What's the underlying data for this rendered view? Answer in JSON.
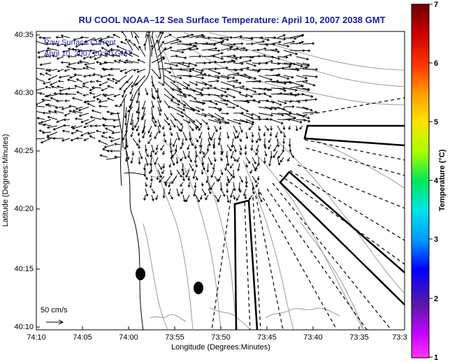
{
  "title": "RU COOL  NOAA–12  Sea Surface Temperature:  April 10, 2007 2038 GMT",
  "legend": {
    "line1": "Raw Surface Current",
    "line2": "April 10, 2007 20:00 GMT"
  },
  "scale": {
    "label": "50 cm/s"
  },
  "axes": {
    "xlabel": "Longitude (Degrees:Minutes)",
    "ylabel": "Latitude (Degrees:Minutes)",
    "xticks": [
      "74:10",
      "74:05",
      "74:00",
      "73:55",
      "73:50",
      "73:45",
      "73:40",
      "73:35",
      "73:3"
    ],
    "yticks": [
      "40:35",
      "40:30",
      "40:25",
      "40:20",
      "40:15",
      "40:10"
    ]
  },
  "colorbar": {
    "label": "Temperature (°C)",
    "ticks": [
      "7",
      "6",
      "5",
      "4",
      "3",
      "2",
      "1"
    ],
    "colors": [
      "#6e0000",
      "#c40000",
      "#ff3300",
      "#ff9900",
      "#ffe100",
      "#a6ff00",
      "#00e65a",
      "#00e6e6",
      "#0096ff",
      "#0000ff",
      "#5a1aa6",
      "#c400ff",
      "#ff33ff"
    ]
  },
  "colors": {
    "title": "#1a1aa6",
    "legend_text": "#2323a0"
  }
}
